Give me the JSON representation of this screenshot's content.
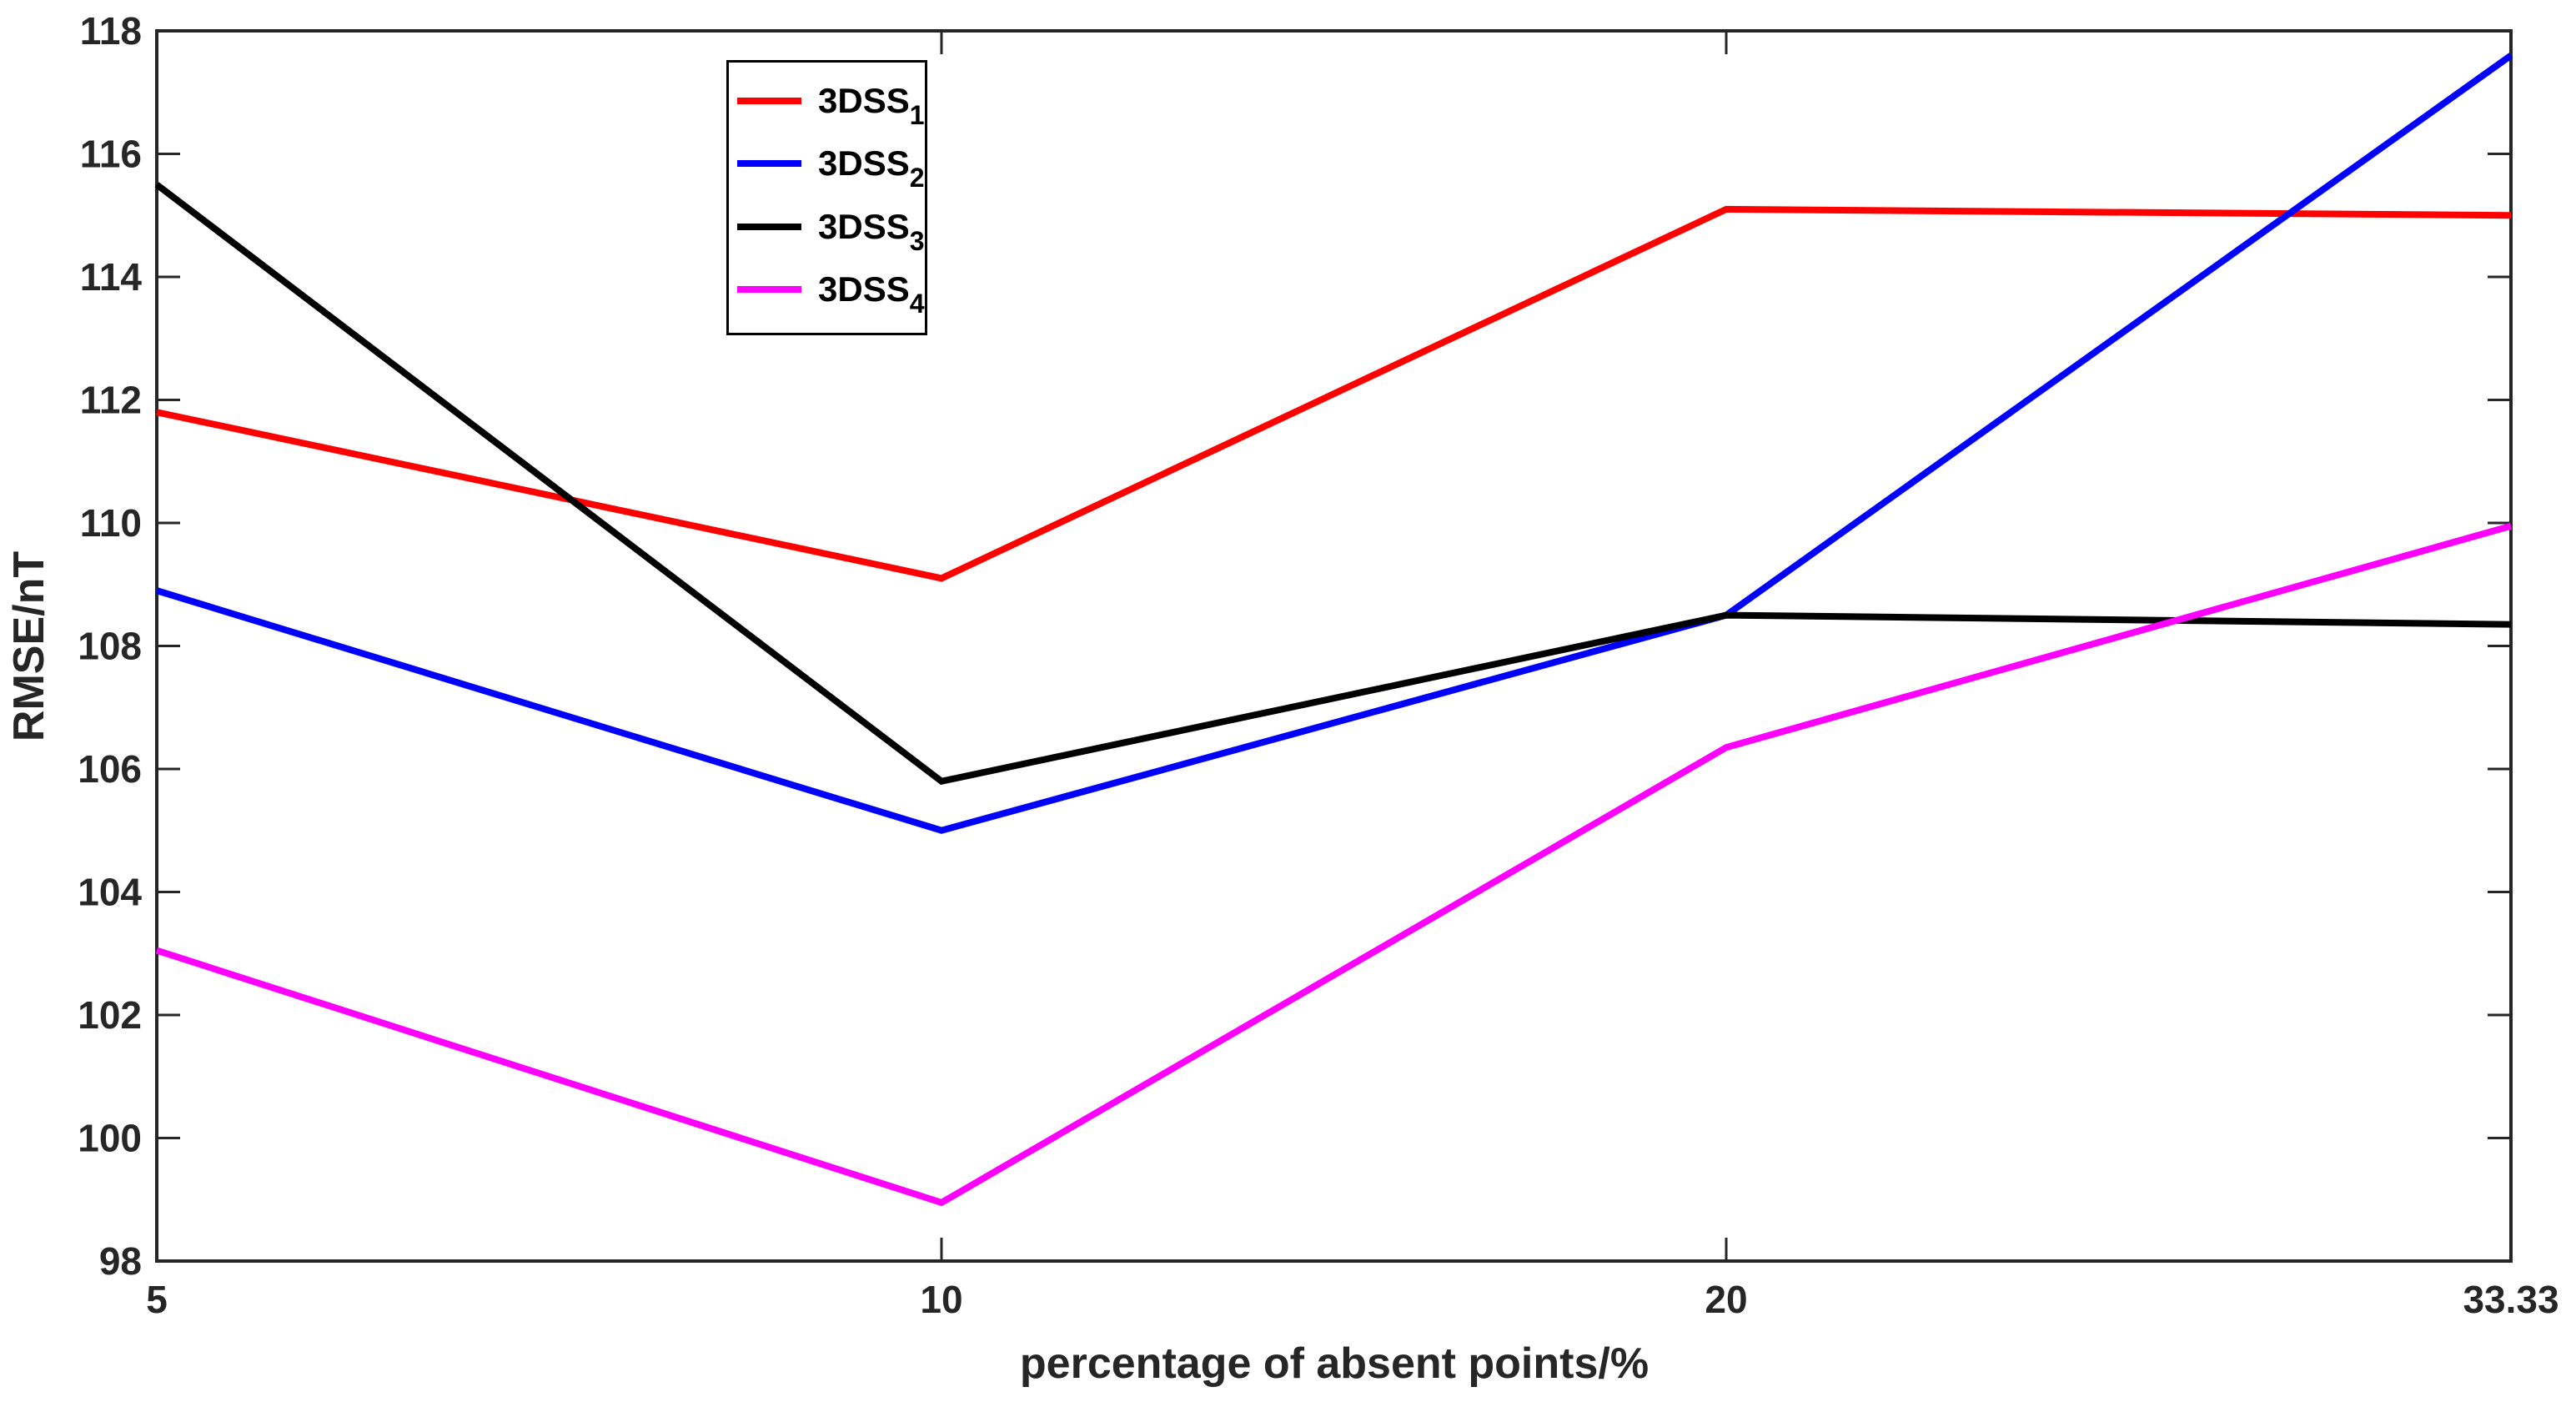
{
  "figure": {
    "background": "#ffffff",
    "axis_color": "#262626",
    "tick_label_color": "#262626",
    "legend_border_color": "#000000"
  },
  "chart_data": {
    "type": "line",
    "title": "",
    "xlabel": "percentage of absent points/%",
    "ylabel": "RMSE/nT",
    "x_tick_labels": [
      "5",
      "10",
      "20",
      "33.33"
    ],
    "x_values": [
      5,
      10,
      20,
      33.33
    ],
    "x_spacing": "equal-categorical",
    "ylim": [
      98,
      118
    ],
    "y_ticks": [
      98,
      100,
      102,
      104,
      106,
      108,
      110,
      112,
      114,
      116,
      118
    ],
    "grid": false,
    "legend_position": "inside-top-left",
    "series": [
      {
        "name": "3DSS",
        "subscript": "1",
        "color": "#FF0000",
        "values": [
          111.8,
          109.1,
          115.1,
          115.0
        ]
      },
      {
        "name": "3DSS",
        "subscript": "2",
        "color": "#0000FF",
        "values": [
          108.9,
          105.0,
          108.5,
          117.6
        ]
      },
      {
        "name": "3DSS",
        "subscript": "3",
        "color": "#000000",
        "values": [
          115.5,
          105.8,
          108.5,
          108.35
        ]
      },
      {
        "name": "3DSS",
        "subscript": "4",
        "color": "#FF00FF",
        "values": [
          103.05,
          98.95,
          106.35,
          109.95
        ]
      }
    ]
  }
}
